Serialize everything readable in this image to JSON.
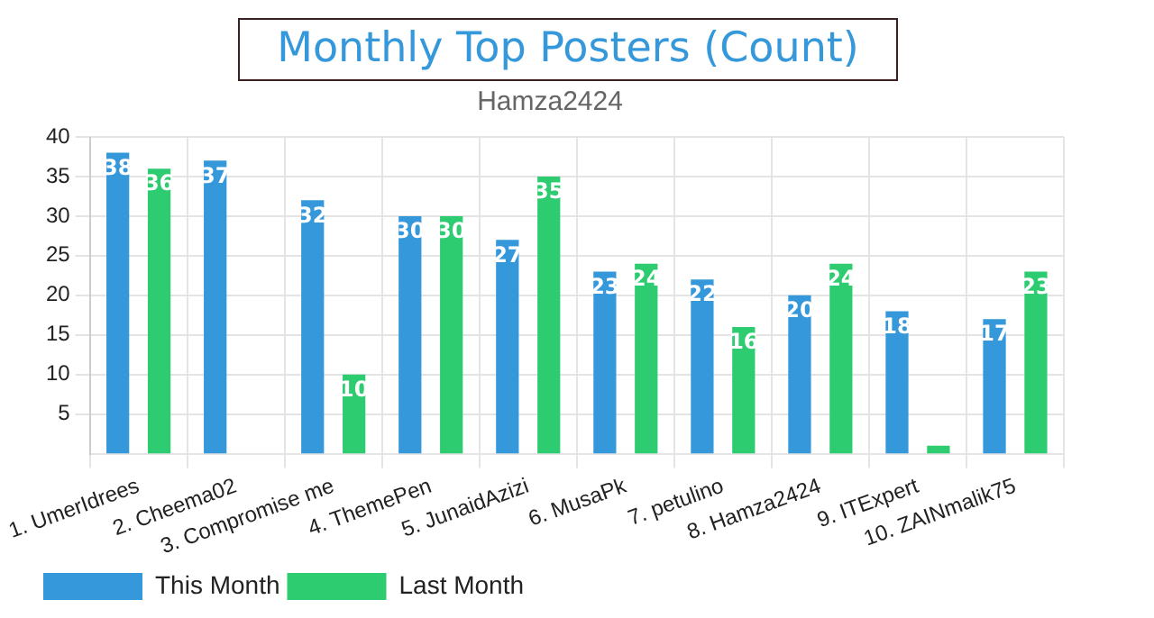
{
  "chart_data": {
    "type": "bar",
    "title": "Monthly Top Posters (Count)",
    "subtitle": "Hamza2424",
    "categories": [
      "1. UmerIdrees",
      "2. Cheema02",
      "3. Compromise me",
      "4. ThemePen",
      "5. JunaidAzizi",
      "6. MusaPk",
      "7. petulino",
      "8. Hamza2424",
      "9. ITExpert",
      "10. ZAINmalik75"
    ],
    "series": [
      {
        "name": "This Month",
        "color": "#3498db",
        "values": [
          38,
          37,
          32,
          30,
          27,
          23,
          22,
          20,
          18,
          17
        ],
        "value_labels": [
          "38",
          "37",
          "32",
          "30",
          "27",
          "23",
          "22",
          "20",
          "18",
          "17"
        ]
      },
      {
        "name": "Last Month",
        "color": "#2ecc71",
        "values": [
          36,
          0,
          10,
          30,
          35,
          24,
          16,
          24,
          1,
          23
        ],
        "value_labels": [
          "36",
          null,
          "10",
          "30",
          "35",
          "24",
          "16",
          "24",
          null,
          "23"
        ]
      }
    ],
    "ylim": [
      0,
      40
    ],
    "yticks": [
      5,
      10,
      15,
      20,
      25,
      30,
      35,
      40
    ],
    "grid": true,
    "legend": "bottom left"
  }
}
